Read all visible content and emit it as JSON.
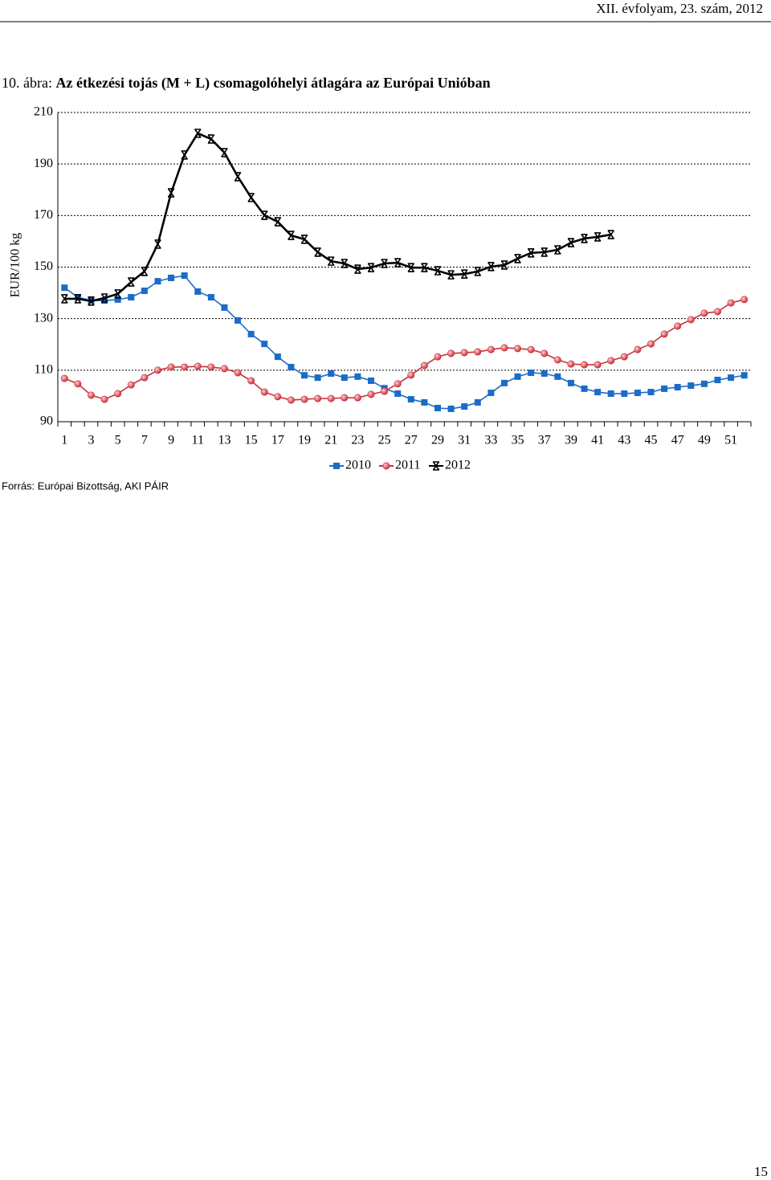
{
  "header": "XII. évfolyam, 23. szám, 2012",
  "figure_label": "10. ábra:",
  "source": "Forrás: Európai Bizottság, AKI PÁIR",
  "page_number": "15",
  "chart_data": {
    "type": "line",
    "title": "Az étkezési tojás (M + L) csomagolóhelyi átlagára az Európai Unióban",
    "y_label": "EUR/100 kg",
    "categories": [
      "1",
      null,
      "3",
      null,
      "5",
      null,
      "7",
      null,
      "9",
      null,
      "11",
      null,
      "13",
      null,
      "15",
      null,
      "17",
      null,
      "19",
      null,
      "21",
      null,
      "23",
      null,
      "25",
      null,
      "27",
      null,
      "29",
      null,
      "31",
      null,
      "33",
      null,
      "35",
      null,
      "37",
      null,
      "39",
      null,
      "41",
      null,
      "43",
      null,
      "45",
      null,
      "47",
      null,
      "49",
      null,
      "51",
      null
    ],
    "ylim": [
      90,
      210
    ],
    "yticks": [
      90,
      110,
      130,
      150,
      170,
      190,
      210
    ],
    "grid": true,
    "legend": "bottom",
    "series": [
      {
        "name": "2010",
        "color": "#1a6cc6",
        "marker": "square",
        "values": [
          142,
          138.3,
          137,
          137,
          137.4,
          138.3,
          140.8,
          144.5,
          145.8,
          146.7,
          140.5,
          138.3,
          134.3,
          129.3,
          124,
          120.2,
          115.2,
          111.2,
          108,
          107.1,
          108.7,
          107.1,
          107.5,
          105.9,
          103,
          100.9,
          98.7,
          97.5,
          95.3,
          95,
          95.9,
          97.5,
          101.2,
          105,
          107.5,
          109,
          108.7,
          107.5,
          105,
          102.8,
          101.5,
          100.9,
          100.9,
          101.2,
          101.5,
          102.8,
          103.4,
          104,
          104.7,
          106.2,
          107.1,
          108
        ]
      },
      {
        "name": "2011",
        "color": "#c9303c",
        "marker": "circle",
        "values": [
          106.8,
          104.7,
          100.3,
          98.7,
          100.9,
          104.3,
          107.1,
          110,
          111.2,
          111.2,
          111.5,
          111.2,
          110.6,
          109,
          105.9,
          101.5,
          99.7,
          98.4,
          98.7,
          99,
          99,
          99.3,
          99.3,
          100.6,
          101.8,
          104.7,
          108.1,
          111.8,
          115.2,
          116.5,
          116.8,
          117.1,
          118,
          118.7,
          118.4,
          118,
          116.5,
          114,
          112.4,
          112.1,
          112.1,
          113.7,
          115.2,
          118,
          120.2,
          124,
          127.1,
          129.6,
          132.1,
          132.7,
          136.1,
          137.4
        ]
      },
      {
        "name": "2012",
        "color": "#000000",
        "marker": "cross",
        "values": [
          137.7,
          137.7,
          136.8,
          138,
          139.6,
          144.2,
          148.3,
          158.9,
          178.8,
          193.5,
          201.9,
          199.7,
          194.4,
          185.1,
          177,
          170.1,
          167.6,
          162.3,
          160.8,
          155.8,
          152.3,
          151.4,
          149.2,
          149.8,
          151.4,
          151.7,
          149.8,
          149.8,
          148.6,
          147,
          147.3,
          148.3,
          150.2,
          150.8,
          153.3,
          155.5,
          155.8,
          156.7,
          159.5,
          161.1,
          161.7,
          162.6,
          null,
          null,
          null,
          null,
          null,
          null,
          null,
          null,
          null,
          null
        ]
      }
    ]
  }
}
